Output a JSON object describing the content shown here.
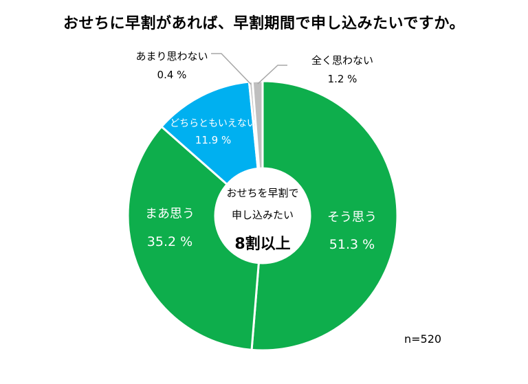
{
  "chart_data": {
    "type": "pie",
    "title": "おせちに早割があれば、早割期間で申し込みたいですか。",
    "slices": [
      {
        "label": "そう思う",
        "value": 51.3,
        "value_text": "51.3 %",
        "color": "#0eae4c"
      },
      {
        "label": "まあ思う",
        "value": 35.2,
        "value_text": "35.2 %",
        "color": "#0eae4c"
      },
      {
        "label": "どちらともいえない",
        "value": 11.9,
        "value_text": "11.9 %",
        "color": "#00b0f0"
      },
      {
        "label": "あまり思わない",
        "value": 0.4,
        "value_text": "0.4 %",
        "color": "#bfbfbf"
      },
      {
        "label": "全く思わない",
        "value": 1.2,
        "value_text": "1.2 %",
        "color": "#bfbfbf"
      }
    ],
    "center_text": {
      "line1": "おせちを早割で",
      "line2": "申し込みたい",
      "line3": "8割以上"
    },
    "n_label": "n=520"
  }
}
